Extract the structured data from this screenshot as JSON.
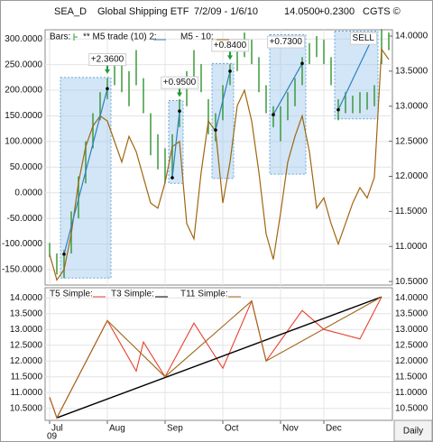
{
  "header": {
    "symbol": "SEA_D",
    "name": "Global Shipping ETF",
    "date_range": "7/2/09 - 1/6/10",
    "last": "14.0500",
    "change": "+0.2300",
    "source": "CGTS ©"
  },
  "chart_data": [
    {
      "type": "hilo",
      "categories": [
        "Jul",
        null,
        null,
        null,
        null,
        null,
        null,
        null,
        "Aug",
        null,
        null,
        null,
        null,
        null,
        null,
        null,
        "Sep",
        null,
        null,
        null,
        null,
        null,
        null,
        null,
        "Oct",
        null,
        null,
        null,
        null,
        null,
        null,
        null,
        "Nov",
        null,
        null,
        null,
        null,
        null,
        "Dec",
        null,
        null,
        null,
        null,
        null,
        null,
        null,
        null,
        null
      ],
      "series": [
        {
          "name": "Bars:",
          "color": "#3a9a3a",
          "axis": "y2",
          "high": [
            11.05,
            10.9,
            10.95,
            11.5,
            12.0,
            12.5,
            12.9,
            13.2,
            13.4,
            13.7,
            13.6,
            13.5,
            13.8,
            13.4,
            12.9,
            12.6,
            12.4,
            12.6,
            13.1,
            13.5,
            13.8,
            13.6,
            13.1,
            12.9,
            13.3,
            13.6,
            13.9,
            14.05,
            13.95,
            13.7,
            13.3,
            13.0,
            13.0,
            13.2,
            13.4,
            13.7,
            13.9,
            14.0,
            13.95,
            13.7,
            13.1,
            13.2,
            13.15,
            13.2,
            13.2,
            13.3,
            14.1,
            14.05
          ],
          "low": [
            10.85,
            10.6,
            10.55,
            10.9,
            11.4,
            11.9,
            12.4,
            12.8,
            13.1,
            13.3,
            13.2,
            13.0,
            13.3,
            12.9,
            12.3,
            12.1,
            11.9,
            12.0,
            12.7,
            13.0,
            13.4,
            13.2,
            12.6,
            12.5,
            12.8,
            13.3,
            13.5,
            13.7,
            13.6,
            13.2,
            12.9,
            12.7,
            12.5,
            12.8,
            13.0,
            13.3,
            13.6,
            13.7,
            13.6,
            13.3,
            12.8,
            12.9,
            12.9,
            12.9,
            12.95,
            13.0,
            13.6,
            13.8
          ]
        },
        {
          "name": "** M5 trade (10) 2:",
          "color": "#2f7fc0",
          "axis": "y2",
          "trades": [
            {
              "start": 2,
              "end": 8,
              "entry": 10.89,
              "exit": 13.25,
              "top": 13.41,
              "bottom": 10.55,
              "label": "+2.3600",
              "label_color": "#1f9a3a"
            },
            {
              "start": 17,
              "end": 18,
              "entry": 11.98,
              "exit": 12.93,
              "top": 13.08,
              "bottom": 11.9,
              "label": "+0.9500",
              "label_color": "#1f9a3a"
            },
            {
              "start": 23,
              "end": 25,
              "entry": 12.66,
              "exit": 13.5,
              "top": 13.61,
              "bottom": 11.97,
              "label": "+0.8400",
              "label_color": "#1f9a3a"
            },
            {
              "start": 31,
              "end": 35,
              "entry": 12.88,
              "exit": 13.61,
              "top": 14.02,
              "bottom": 12.03,
              "label": "+0.7300",
              "label_color": "#1f9a3a"
            },
            {
              "start": 40,
              "end": 45,
              "entry": 12.95,
              "exit": 14.03,
              "top": 14.07,
              "bottom": 12.82,
              "label": "SELL",
              "label_color": "#000000"
            }
          ]
        },
        {
          "name": "M5 - 10:",
          "color": "#a0660e",
          "values": [
            -120,
            -170,
            -150,
            -80,
            20,
            90,
            130,
            150,
            140,
            100,
            60,
            110,
            80,
            30,
            -20,
            -30,
            20,
            90,
            100,
            -60,
            -90,
            40,
            140,
            120,
            -20,
            60,
            170,
            200,
            140,
            40,
            -80,
            -130,
            -40,
            60,
            110,
            150,
            80,
            -30,
            -10,
            -60,
            -100,
            -60,
            -20,
            10,
            -10,
            30,
            280,
            260
          ]
        }
      ],
      "ylim": [
        -180,
        318
      ],
      "yticks": [
        {
          "value": 300,
          "label": "300.0000"
        },
        {
          "value": 250,
          "label": "250.0000"
        },
        {
          "value": 200,
          "label": "200.0000"
        },
        {
          "value": 150,
          "label": "150.0000"
        },
        {
          "value": 100,
          "label": "100.0000"
        },
        {
          "value": 50,
          "label": "50.0000"
        },
        {
          "value": 0,
          "label": "0.0000"
        },
        {
          "value": -50,
          "label": "-50.0000"
        },
        {
          "value": -100,
          "label": "-100.0000"
        },
        {
          "value": -150,
          "label": "-150.0000"
        }
      ],
      "y2lim": [
        10.45,
        14.09
      ],
      "y2ticks": [
        {
          "value": 14,
          "label": "14.0000"
        },
        {
          "value": 13.5,
          "label": "13.5000"
        },
        {
          "value": 13,
          "label": "13.0000"
        },
        {
          "value": 12.5,
          "label": "12.5000"
        },
        {
          "value": 12,
          "label": "12.0000"
        },
        {
          "value": 11.5,
          "label": "11.5000"
        },
        {
          "value": 11,
          "label": "11.0000"
        },
        {
          "value": 10.5,
          "label": "10.5000"
        }
      ],
      "grid": true
    },
    {
      "type": "line",
      "series": [
        {
          "name": "T5 Simple:",
          "color": "#e8412c",
          "x": [
            0,
            1,
            8,
            12,
            13,
            16,
            20,
            24,
            28,
            30,
            35,
            38,
            43,
            46
          ],
          "values": [
            10.85,
            10.2,
            13.28,
            11.68,
            12.6,
            11.5,
            13.2,
            11.77,
            13.9,
            12.0,
            13.6,
            13.0,
            12.7,
            14.03
          ]
        },
        {
          "name": "T3 Simple:",
          "color": "#000000",
          "x": [
            1,
            46
          ],
          "values": [
            10.2,
            14.03
          ]
        },
        {
          "name": "T11 Simple:",
          "color": "#a0661a",
          "x": [
            0,
            1,
            8,
            16,
            28,
            30,
            46
          ],
          "values": [
            10.85,
            10.2,
            13.28,
            11.5,
            13.9,
            12.0,
            14.03
          ]
        }
      ],
      "ylim": [
        10.12,
        14.32
      ],
      "yticks": [
        {
          "value": 14,
          "label": "14.0000"
        },
        {
          "value": 13.5,
          "label": "13.5000"
        },
        {
          "value": 13,
          "label": "13.0000"
        },
        {
          "value": 12.5,
          "label": "12.5000"
        },
        {
          "value": 12,
          "label": "12.0000"
        },
        {
          "value": 11.5,
          "label": "11.5000"
        },
        {
          "value": 11,
          "label": "11.0000"
        },
        {
          "value": 10.5,
          "label": "10.5000"
        }
      ],
      "year_label": "09",
      "frequency": "Daily",
      "grid": true
    }
  ]
}
